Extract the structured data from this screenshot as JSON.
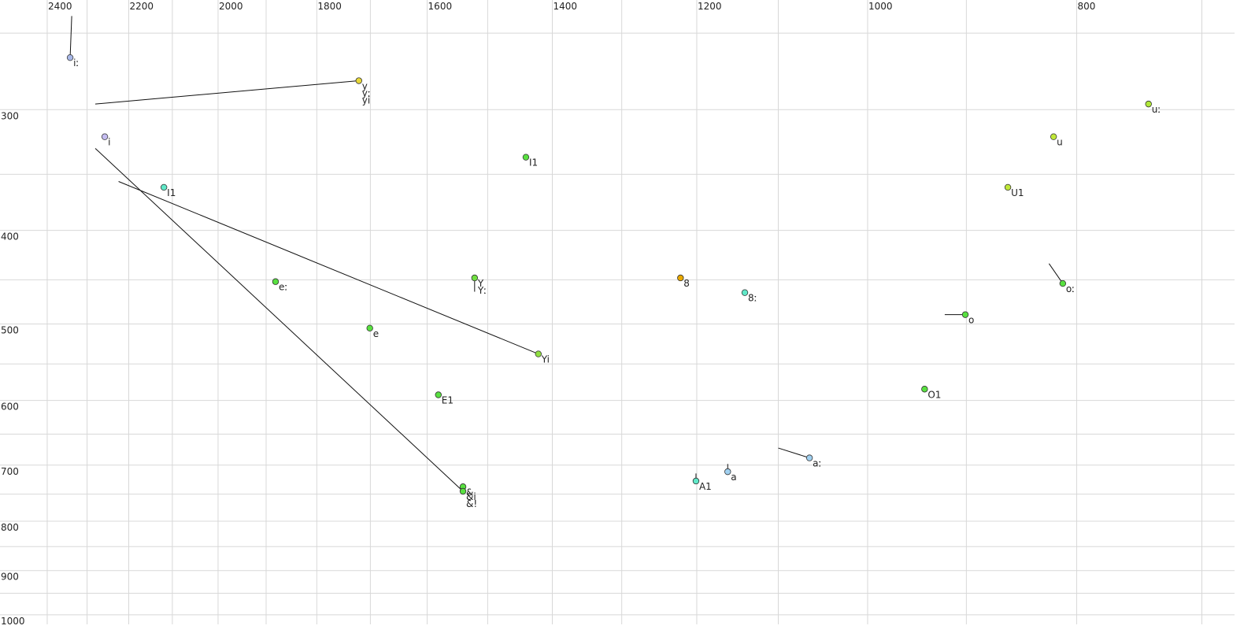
{
  "chart_data": {
    "type": "scatter",
    "log_x": true,
    "log_y": true,
    "x_reversed": true,
    "xlim": [
      2524,
      676
    ],
    "ylim": [
      231,
      1023
    ],
    "xticks": [
      2400,
      2200,
      2000,
      1800,
      1600,
      1400,
      1200,
      1000,
      800
    ],
    "yticks": [
      300,
      400,
      500,
      600,
      700,
      800,
      900,
      1000
    ],
    "xgrid": [
      2400,
      2300,
      2200,
      2100,
      2000,
      1900,
      1800,
      1700,
      1600,
      1500,
      1400,
      1300,
      1200,
      1100,
      1000,
      900,
      800,
      700
    ],
    "ygrid": [
      250,
      300,
      350,
      400,
      450,
      500,
      550,
      600,
      650,
      700,
      750,
      800,
      850,
      900,
      950,
      1000
    ],
    "grid": true,
    "points": [
      {
        "label": "iː",
        "x": 2342,
        "y": 265,
        "color": "#a8b8e8",
        "track": {
          "x": 2338,
          "y": 240
        }
      },
      {
        "label": "y",
        "x": 1721,
        "y": 280,
        "color": "#e8d838"
      },
      {
        "label": "yː",
        "x": 1721,
        "y": 280,
        "color": "#e8d838"
      },
      {
        "label": "yi",
        "x": 1721,
        "y": 280,
        "color": "#e8d838",
        "track": {
          "x": 2280,
          "y": 296
        }
      },
      {
        "label": "i",
        "x": 2257,
        "y": 320,
        "color": "#c4bcf0"
      },
      {
        "label": "I1",
        "x": 2119,
        "y": 361,
        "color": "#60e8c8"
      },
      {
        "label": "I1",
        "x": 1440,
        "y": 336,
        "color": "#58e040"
      },
      {
        "label": "eː",
        "x": 1881,
        "y": 452,
        "color": "#58e040"
      },
      {
        "label": "e",
        "x": 1701,
        "y": 505,
        "color": "#58e040"
      },
      {
        "label": "Y",
        "x": 1521,
        "y": 448,
        "color": "#70e040",
        "track": {
          "x": 1521,
          "y": 463
        }
      },
      {
        "label": "Yː",
        "x": 1521,
        "y": 448,
        "color": "#70e040"
      },
      {
        "label": "Yi",
        "x": 1421,
        "y": 537,
        "color": "#90e040",
        "track": {
          "x": 2224,
          "y": 356
        }
      },
      {
        "label": "E1",
        "x": 1581,
        "y": 592,
        "color": "#58e040"
      },
      {
        "label": "&",
        "x": 1540,
        "y": 737,
        "color": "#58e040"
      },
      {
        "label": "&i",
        "x": 1540,
        "y": 745,
        "color": "#58e040",
        "track": {
          "x": 2280,
          "y": 329
        }
      },
      {
        "label": "&!",
        "x": 1540,
        "y": 745,
        "color": "#58e040"
      },
      {
        "label": "8",
        "x": 1221,
        "y": 448,
        "color": "#e8a800"
      },
      {
        "label": "8ː",
        "x": 1140,
        "y": 464,
        "color": "#60e8c8"
      },
      {
        "label": "A1",
        "x": 1201,
        "y": 727,
        "color": "#60e8c8",
        "track": {
          "x": 1201,
          "y": 714
        }
      },
      {
        "label": "a",
        "x": 1161,
        "y": 711,
        "color": "#a0d0f0",
        "track": {
          "x": 1161,
          "y": 698
        }
      },
      {
        "label": "aː",
        "x": 1064,
        "y": 688,
        "color": "#a0d0f0",
        "track": {
          "x": 1100,
          "y": 672
        }
      },
      {
        "label": "O1",
        "x": 941,
        "y": 584,
        "color": "#58e040"
      },
      {
        "label": "o",
        "x": 901,
        "y": 489,
        "color": "#58e040",
        "track": {
          "x": 921,
          "y": 489
        }
      },
      {
        "label": "U1",
        "x": 861,
        "y": 361,
        "color": "#c0e838"
      },
      {
        "label": "u",
        "x": 820,
        "y": 320,
        "color": "#c0e838"
      },
      {
        "label": "oː",
        "x": 812,
        "y": 454,
        "color": "#58e040",
        "track": {
          "x": 824,
          "y": 433
        }
      },
      {
        "label": "uː",
        "x": 741,
        "y": 296,
        "color": "#b0e838"
      }
    ]
  }
}
